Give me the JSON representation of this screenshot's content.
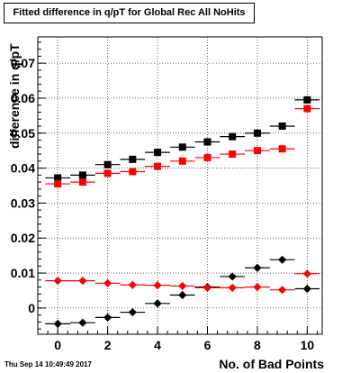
{
  "chart_data": {
    "type": "scatter",
    "title": "Fitted difference in q/pT for Global Rec All NoHits",
    "xlabel": "No. of Bad Points",
    "ylabel": "difference in q/pT",
    "timestamp": "Thu Sep 14 10:49:49 2017",
    "xlim": [
      -0.8,
      10.6
    ],
    "ylim": [
      -0.0075,
      0.0775
    ],
    "x_ticks": [
      0,
      2,
      4,
      6,
      8,
      10
    ],
    "y_ticks": [
      0,
      0.01,
      0.02,
      0.03,
      0.04,
      0.05,
      0.06,
      0.07
    ],
    "y_tick_labels": [
      "0",
      "0.01",
      "0.02",
      "0.03",
      "0.04",
      "0.05",
      "0.06",
      "0.07"
    ],
    "grid": true,
    "x": [
      0,
      1,
      2,
      3,
      4,
      5,
      6,
      7,
      8,
      9,
      10
    ],
    "x_err": 0.5,
    "series": [
      {
        "marker": "square",
        "color": "#000000",
        "values": [
          0.0372,
          0.038,
          0.041,
          0.0425,
          0.0445,
          0.046,
          0.0475,
          0.049,
          0.05,
          0.052,
          0.0595
        ]
      },
      {
        "marker": "square",
        "color": "#ff0000",
        "values": [
          0.0355,
          0.036,
          0.0385,
          0.039,
          0.0405,
          0.042,
          0.043,
          0.044,
          0.045,
          0.0455,
          0.057
        ]
      },
      {
        "marker": "diamond",
        "color": "#000000",
        "values": [
          -0.0045,
          -0.0042,
          -0.0027,
          -0.0012,
          0.0013,
          0.0037,
          0.006,
          0.009,
          0.0115,
          0.0138,
          0.0055
        ]
      },
      {
        "marker": "diamond",
        "color": "#ff0000",
        "values": [
          0.0078,
          0.0078,
          0.0071,
          0.0066,
          0.0065,
          0.0063,
          0.0058,
          0.0058,
          0.006,
          0.0052,
          0.0098
        ]
      }
    ]
  }
}
